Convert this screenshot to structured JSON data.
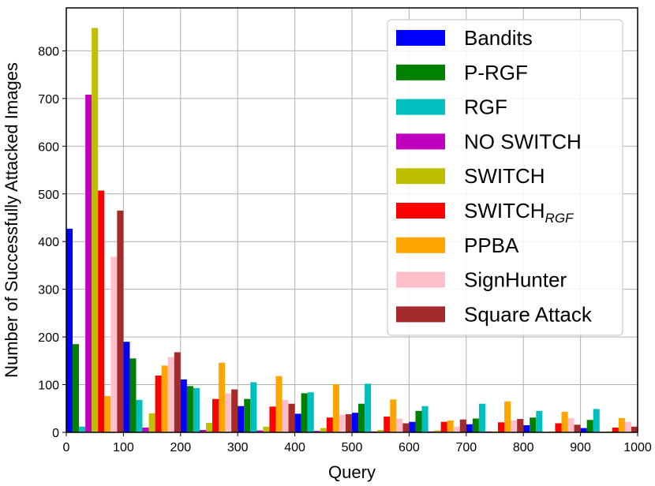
{
  "chart_data": {
    "type": "bar",
    "xlabel": "Query",
    "ylabel": "Number of Successfully Attacked Images",
    "xlim": [
      0,
      1000
    ],
    "ylim": [
      0,
      890
    ],
    "x_ticks": [
      "0",
      "100",
      "200",
      "300",
      "400",
      "500",
      "600",
      "700",
      "800",
      "900",
      "1000"
    ],
    "y_ticks": [
      "0",
      "100",
      "200",
      "300",
      "400",
      "500",
      "600",
      "700",
      "800"
    ],
    "grid": true,
    "legend_position": "top-right",
    "bin_width": 100,
    "bins": [
      0,
      100,
      200,
      300,
      400,
      500,
      600,
      700,
      800,
      900
    ],
    "series": [
      {
        "name": "Bandits",
        "color": "#0000ff",
        "values": [
          427,
          190,
          111,
          55,
          39,
          41,
          22,
          17,
          15,
          9
        ]
      },
      {
        "name": "P-RGF",
        "color": "#008000",
        "values": [
          185,
          155,
          97,
          70,
          82,
          60,
          45,
          29,
          31,
          26
        ]
      },
      {
        "name": "RGF",
        "color": "#00bfbf",
        "values": [
          12,
          68,
          93,
          105,
          84,
          102,
          55,
          60,
          45,
          49
        ]
      },
      {
        "name": "NO SWITCH",
        "color": "#bf00bf",
        "values": [
          708,
          10,
          5,
          4,
          3,
          2,
          2,
          2,
          1,
          1
        ]
      },
      {
        "name": "SWITCH",
        "color": "#bfbf00",
        "values": [
          848,
          40,
          20,
          12,
          9,
          5,
          4,
          2,
          2,
          2
        ]
      },
      {
        "name": "SWITCH",
        "name_sub": "RGF",
        "color": "#ff0000",
        "values": [
          507,
          119,
          70,
          54,
          31,
          33,
          22,
          21,
          19,
          10
        ]
      },
      {
        "name": "PPBA",
        "color": "#ffa500",
        "values": [
          76,
          140,
          146,
          118,
          101,
          69,
          25,
          65,
          43,
          30
        ]
      },
      {
        "name": "SignHunter",
        "color": "#ffc0cb",
        "values": [
          368,
          158,
          82,
          68,
          37,
          29,
          12,
          25,
          30,
          22
        ]
      },
      {
        "name": "Square Attack",
        "color": "#a52a2a",
        "values": [
          465,
          168,
          90,
          60,
          38,
          19,
          27,
          28,
          16,
          12
        ]
      }
    ]
  }
}
